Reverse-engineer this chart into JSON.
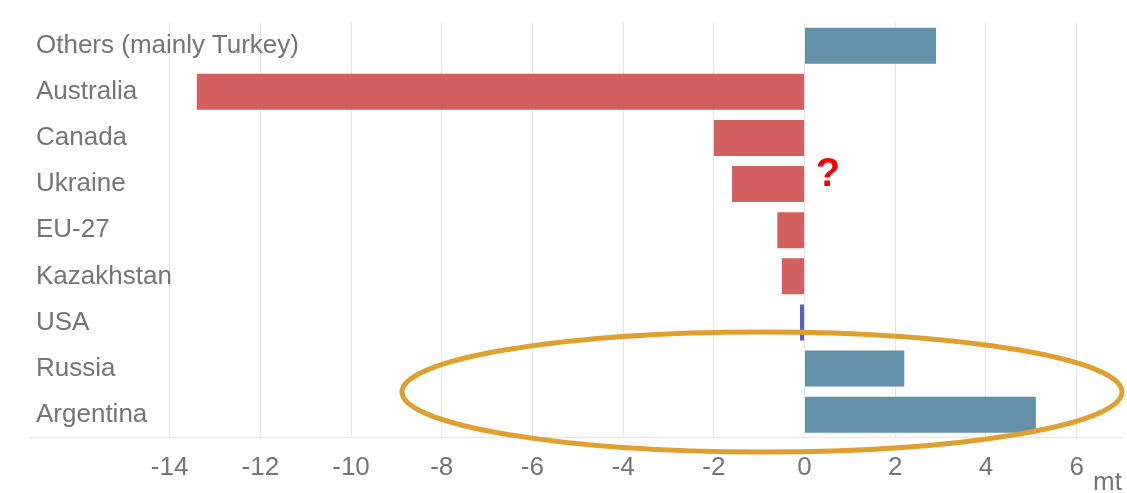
{
  "chart_data": {
    "type": "bar",
    "orientation": "horizontal",
    "xlabel": "mt",
    "categories": [
      "Others (mainly Turkey)",
      "Australia",
      "Canada",
      "Ukraine",
      "EU-27",
      "Kazakhstan",
      "USA",
      "Russia",
      "Argentina"
    ],
    "values": [
      2.9,
      -13.4,
      -2.0,
      -1.6,
      -0.6,
      -0.5,
      -0.1,
      2.2,
      5.1
    ],
    "colors": [
      "#6190a8",
      "#d45f5f",
      "#d45f5f",
      "#d45f5f",
      "#d45f5f",
      "#d45f5f",
      "#5a5fc8",
      "#6190a8",
      "#6190a8"
    ],
    "xlim": [
      -17.1,
      7.0
    ],
    "xticks": [
      -14,
      -12,
      -10,
      -8,
      -6,
      -4,
      -2,
      0,
      2,
      4,
      6
    ],
    "grid": "x",
    "legend": false,
    "annotations": [
      "?"
    ]
  }
}
